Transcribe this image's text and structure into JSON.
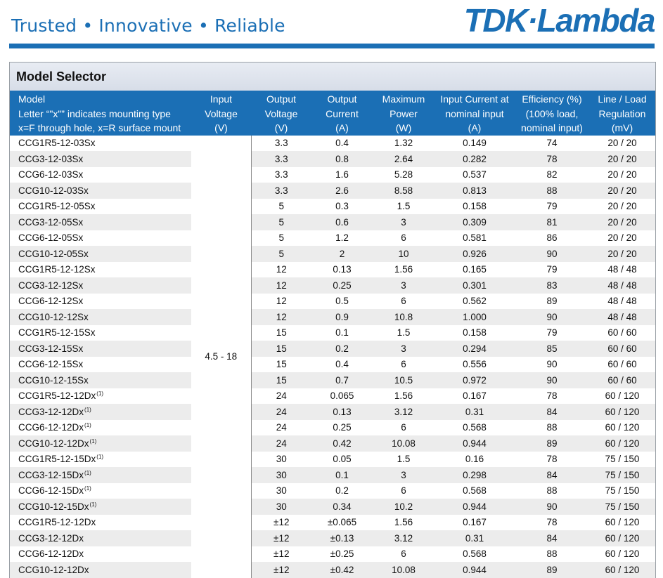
{
  "header": {
    "tagline": "Trusted • Innovative • Reliable",
    "logo_text": "TDK·Lambda",
    "brand_color": "#1b6fb5"
  },
  "selector": {
    "title": "Model Selector",
    "columns": [
      {
        "lines": [
          "Model",
          "Letter “\"x\"” indicates mounting type",
          "x=F through hole, x=R surface mount"
        ]
      },
      {
        "lines": [
          "Input",
          "Voltage",
          "(V)"
        ]
      },
      {
        "lines": [
          "Output",
          "Voltage",
          "(V)"
        ]
      },
      {
        "lines": [
          "Output",
          "Current",
          "(A)"
        ]
      },
      {
        "lines": [
          "Maximum",
          "Power",
          "(W)"
        ]
      },
      {
        "lines": [
          "Input Current at",
          "nominal input",
          "(A)"
        ]
      },
      {
        "lines": [
          "Efficiency (%)",
          "(100% load,",
          "nominal input)"
        ]
      },
      {
        "lines": [
          "Line / Load",
          "Regulation",
          "(mV)"
        ]
      }
    ],
    "input_voltage": "4.5 - 18",
    "rows": [
      {
        "model": "CCG1R5-12-03Sx",
        "note": "",
        "vout": "3.3",
        "iout": "0.4",
        "power": "1.32",
        "iin": "0.149",
        "eff": "74",
        "reg": "20 / 20"
      },
      {
        "model": "CCG3-12-03Sx",
        "note": "",
        "vout": "3.3",
        "iout": "0.8",
        "power": "2.64",
        "iin": "0.282",
        "eff": "78",
        "reg": "20 / 20"
      },
      {
        "model": "CCG6-12-03Sx",
        "note": "",
        "vout": "3.3",
        "iout": "1.6",
        "power": "5.28",
        "iin": "0.537",
        "eff": "82",
        "reg": "20 / 20"
      },
      {
        "model": "CCG10-12-03Sx",
        "note": "",
        "vout": "3.3",
        "iout": "2.6",
        "power": "8.58",
        "iin": "0.813",
        "eff": "88",
        "reg": "20 / 20"
      },
      {
        "model": "CCG1R5-12-05Sx",
        "note": "",
        "vout": "5",
        "iout": "0.3",
        "power": "1.5",
        "iin": "0.158",
        "eff": "79",
        "reg": "20 / 20"
      },
      {
        "model": "CCG3-12-05Sx",
        "note": "",
        "vout": "5",
        "iout": "0.6",
        "power": "3",
        "iin": "0.309",
        "eff": "81",
        "reg": "20 / 20"
      },
      {
        "model": "CCG6-12-05Sx",
        "note": "",
        "vout": "5",
        "iout": "1.2",
        "power": "6",
        "iin": "0.581",
        "eff": "86",
        "reg": "20 / 20"
      },
      {
        "model": "CCG10-12-05Sx",
        "note": "",
        "vout": "5",
        "iout": "2",
        "power": "10",
        "iin": "0.926",
        "eff": "90",
        "reg": "20 / 20"
      },
      {
        "model": "CCG1R5-12-12Sx",
        "note": "",
        "vout": "12",
        "iout": "0.13",
        "power": "1.56",
        "iin": "0.165",
        "eff": "79",
        "reg": "48 / 48"
      },
      {
        "model": "CCG3-12-12Sx",
        "note": "",
        "vout": "12",
        "iout": "0.25",
        "power": "3",
        "iin": "0.301",
        "eff": "83",
        "reg": "48 / 48"
      },
      {
        "model": "CCG6-12-12Sx",
        "note": "",
        "vout": "12",
        "iout": "0.5",
        "power": "6",
        "iin": "0.562",
        "eff": "89",
        "reg": "48 / 48"
      },
      {
        "model": "CCG10-12-12Sx",
        "note": "",
        "vout": "12",
        "iout": "0.9",
        "power": "10.8",
        "iin": "1.000",
        "eff": "90",
        "reg": "48 / 48"
      },
      {
        "model": "CCG1R5-12-15Sx",
        "note": "",
        "vout": "15",
        "iout": "0.1",
        "power": "1.5",
        "iin": "0.158",
        "eff": "79",
        "reg": "60 / 60"
      },
      {
        "model": "CCG3-12-15Sx",
        "note": "",
        "vout": "15",
        "iout": "0.2",
        "power": "3",
        "iin": "0.294",
        "eff": "85",
        "reg": "60 / 60"
      },
      {
        "model": "CCG6-12-15Sx",
        "note": "",
        "vout": "15",
        "iout": "0.4",
        "power": "6",
        "iin": "0.556",
        "eff": "90",
        "reg": "60 / 60"
      },
      {
        "model": "CCG10-12-15Sx",
        "note": "",
        "vout": "15",
        "iout": "0.7",
        "power": "10.5",
        "iin": "0.972",
        "eff": "90",
        "reg": "60 / 60"
      },
      {
        "model": "CCG1R5-12-12Dx",
        "note": "(1)",
        "vout": "24",
        "iout": "0.065",
        "power": "1.56",
        "iin": "0.167",
        "eff": "78",
        "reg": "60 / 120"
      },
      {
        "model": "CCG3-12-12Dx",
        "note": "(1)",
        "vout": "24",
        "iout": "0.13",
        "power": "3.12",
        "iin": "0.31",
        "eff": "84",
        "reg": "60 / 120"
      },
      {
        "model": "CCG6-12-12Dx",
        "note": "(1)",
        "vout": "24",
        "iout": "0.25",
        "power": "6",
        "iin": "0.568",
        "eff": "88",
        "reg": "60 / 120"
      },
      {
        "model": "CCG10-12-12Dx",
        "note": "(1)",
        "vout": "24",
        "iout": "0.42",
        "power": "10.08",
        "iin": "0.944",
        "eff": "89",
        "reg": "60 / 120"
      },
      {
        "model": "CCG1R5-12-15Dx",
        "note": "(1)",
        "vout": "30",
        "iout": "0.05",
        "power": "1.5",
        "iin": "0.16",
        "eff": "78",
        "reg": "75 / 150"
      },
      {
        "model": "CCG3-12-15Dx",
        "note": "(1)",
        "vout": "30",
        "iout": "0.1",
        "power": "3",
        "iin": "0.298",
        "eff": "84",
        "reg": "75 / 150"
      },
      {
        "model": "CCG6-12-15Dx",
        "note": "(1)",
        "vout": "30",
        "iout": "0.2",
        "power": "6",
        "iin": "0.568",
        "eff": "88",
        "reg": "75 / 150"
      },
      {
        "model": "CCG10-12-15Dx",
        "note": "(1)",
        "vout": "30",
        "iout": "0.34",
        "power": "10.2",
        "iin": "0.944",
        "eff": "90",
        "reg": "75 / 150"
      },
      {
        "model": "CCG1R5-12-12Dx",
        "note": "",
        "vout": "±12",
        "iout": "±0.065",
        "power": "1.56",
        "iin": "0.167",
        "eff": "78",
        "reg": "60 / 120"
      },
      {
        "model": "CCG3-12-12Dx",
        "note": "",
        "vout": "±12",
        "iout": "±0.13",
        "power": "3.12",
        "iin": "0.31",
        "eff": "84",
        "reg": "60 / 120"
      },
      {
        "model": "CCG6-12-12Dx",
        "note": "",
        "vout": "±12",
        "iout": "±0.25",
        "power": "6",
        "iin": "0.568",
        "eff": "88",
        "reg": "60 / 120"
      },
      {
        "model": "CCG10-12-12Dx",
        "note": "",
        "vout": "±12",
        "iout": "±0.42",
        "power": "10.08",
        "iin": "0.944",
        "eff": "89",
        "reg": "60 / 120"
      }
    ]
  }
}
